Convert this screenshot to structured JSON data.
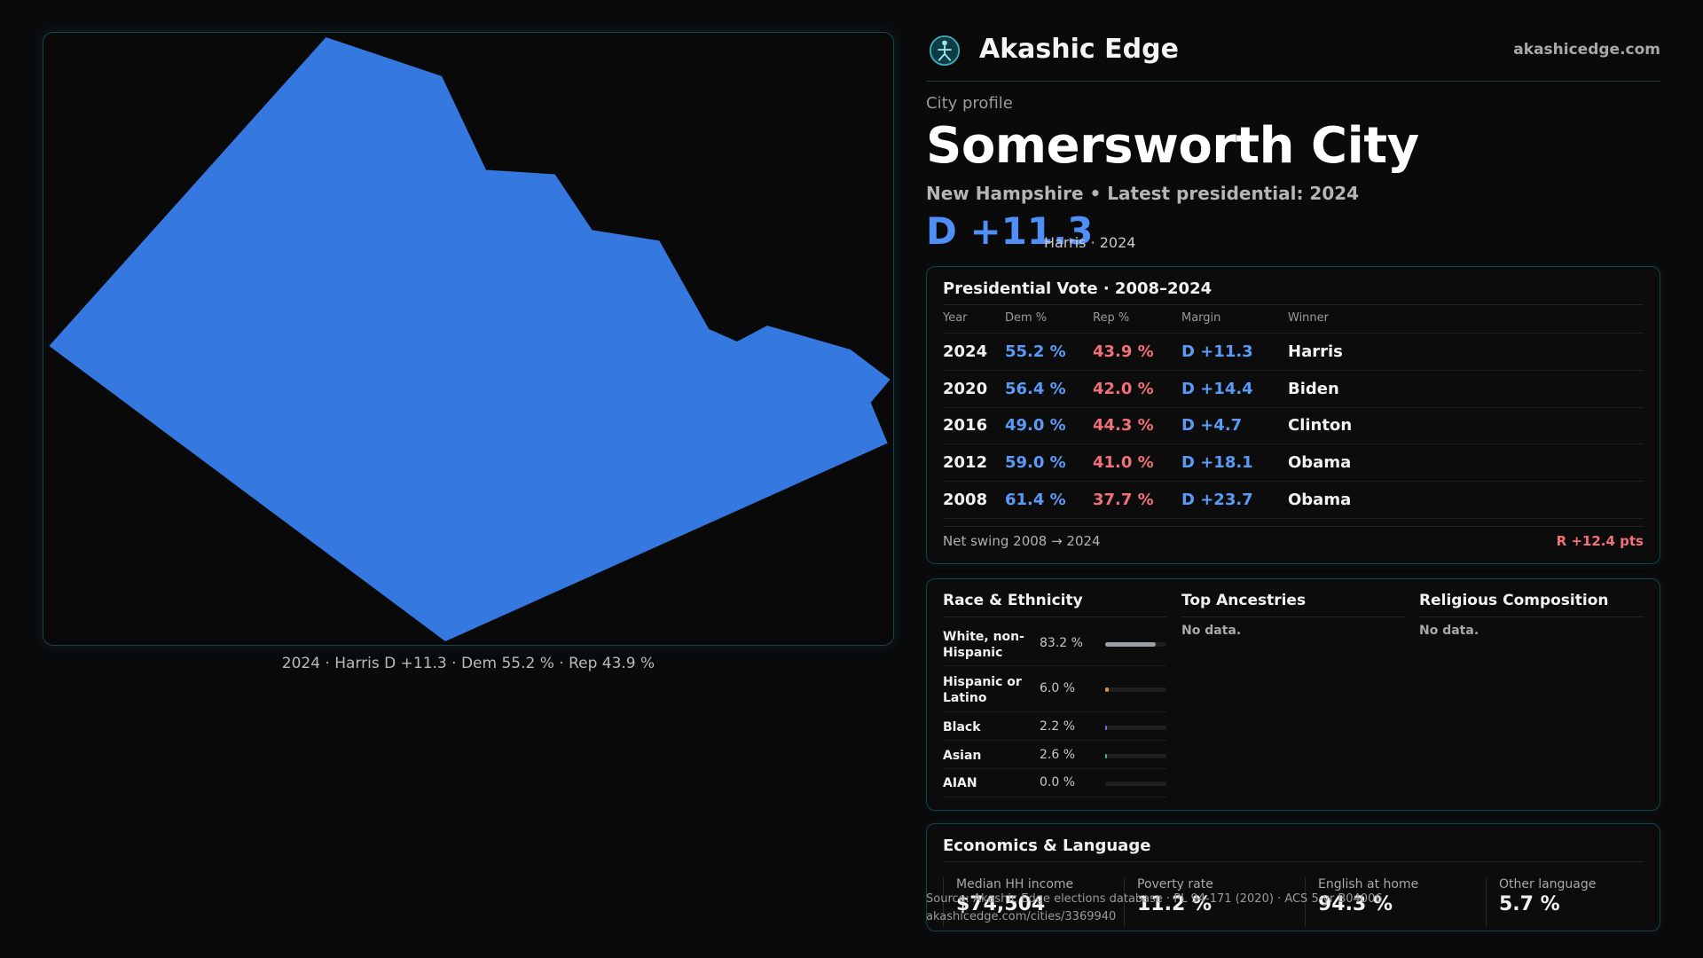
{
  "brand": {
    "name": "Akashic Edge",
    "site": "akashicedge.com"
  },
  "profile": {
    "eyebrow": "City profile",
    "name": "Somersworth City",
    "subtitle": "New Hampshire • Latest presidential: 2024",
    "margin": "D +11.3",
    "margin_note": "Harris · 2024"
  },
  "map": {
    "caption": "2024 · Harris D +11.3 · Dem 55.2 % · Rep 43.9 %",
    "fill_color": "#3478e0"
  },
  "presidential": {
    "title": "Presidential Vote · 2008–2024",
    "headers": {
      "year": "Year",
      "dem": "Dem %",
      "rep": "Rep %",
      "margin": "Margin",
      "winner": "Winner"
    },
    "rows": [
      {
        "year": "2024",
        "dem": "55.2 %",
        "rep": "43.9 %",
        "margin": "D +11.3",
        "winner": "Harris"
      },
      {
        "year": "2020",
        "dem": "56.4 %",
        "rep": "42.0 %",
        "margin": "D +14.4",
        "winner": "Biden"
      },
      {
        "year": "2016",
        "dem": "49.0 %",
        "rep": "44.3 %",
        "margin": "D +4.7",
        "winner": "Clinton"
      },
      {
        "year": "2012",
        "dem": "59.0 %",
        "rep": "41.0 %",
        "margin": "D +18.1",
        "winner": "Obama"
      },
      {
        "year": "2008",
        "dem": "61.4 %",
        "rep": "37.7 %",
        "margin": "D +23.7",
        "winner": "Obama"
      }
    ],
    "swing_label": "Net swing 2008 → 2024",
    "swing_value": "R +12.4 pts"
  },
  "demographics": {
    "race_title": "Race & Ethnicity",
    "race": [
      {
        "label": "White, non-Hispanic",
        "pct": "83.2 %",
        "value": 83.2,
        "color": "#9aa0a8"
      },
      {
        "label": "Hispanic or Latino",
        "pct": "6.0 %",
        "value": 6.0,
        "color": "#e0962e"
      },
      {
        "label": "Black",
        "pct": "2.2 %",
        "value": 2.2,
        "color": "#7f6fd8"
      },
      {
        "label": "Asian",
        "pct": "2.6 %",
        "value": 2.6,
        "color": "#3fb58a"
      },
      {
        "label": "AIAN",
        "pct": "0.0 %",
        "value": 0.0,
        "color": "#c06060"
      }
    ],
    "ancestries_title": "Top Ancestries",
    "ancestries_empty": "No data.",
    "religion_title": "Religious Composition",
    "religion_empty": "No data."
  },
  "economics": {
    "title": "Economics & Language",
    "stats": [
      {
        "label": "Median HH income",
        "value": "$74,504"
      },
      {
        "label": "Poverty rate",
        "value": "11.2 %"
      },
      {
        "label": "English at home",
        "value": "94.3 %"
      },
      {
        "label": "Other language",
        "value": "5.7 %"
      }
    ]
  },
  "footer": {
    "source": "Source: Akashic Edge elections database · PL 94-171 (2020) · ACS 5-yr B04006",
    "url": "akashicedge.com/cities/3369940"
  }
}
